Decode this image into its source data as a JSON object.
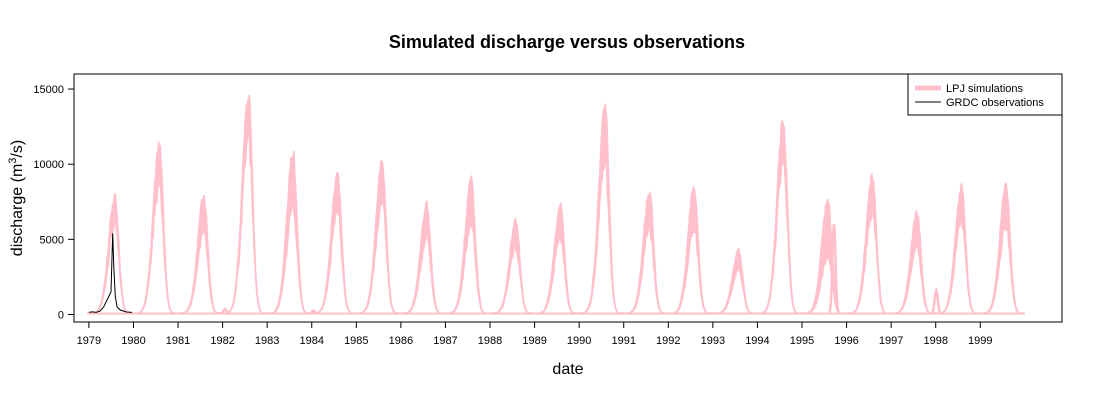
{
  "chart_data": {
    "type": "line",
    "title": "Simulated discharge versus observations",
    "xlabel": "date",
    "ylabel": "discharge (m3/s)",
    "ylabel_base": "discharge (m",
    "ylabel_sup": "3",
    "ylabel_tail": "/s)",
    "x_ticks": [
      "1979",
      "1980",
      "1981",
      "1982",
      "1983",
      "1984",
      "1985",
      "1986",
      "1987",
      "1988",
      "1989",
      "1990",
      "1991",
      "1992",
      "1993",
      "1994",
      "1995",
      "1996",
      "1997",
      "1998",
      "1999"
    ],
    "y_ticks": [
      0,
      5000,
      10000,
      15000
    ],
    "xlim": [
      "1978-09-01",
      "2000-11-01"
    ],
    "ylim": [
      -500,
      16000
    ],
    "grid": false,
    "legend_position": "top-right",
    "series": [
      {
        "name": "LPJ simulations",
        "color": "#ffc0cb",
        "style": "band",
        "annual_peaks": [
          {
            "year": 1979,
            "low": 6500,
            "peak": 8100
          },
          {
            "year": 1980,
            "low": 9500,
            "peak": 11600
          },
          {
            "year": 1981,
            "low": 5900,
            "peak": 8100
          },
          {
            "year": 1982,
            "low": 12800,
            "peak": 15200
          },
          {
            "year": 1983,
            "low": 7800,
            "peak": 11200
          },
          {
            "year": 1984,
            "low": 7500,
            "peak": 9800
          },
          {
            "year": 1985,
            "low": 8200,
            "peak": 10600
          },
          {
            "year": 1986,
            "low": 5500,
            "peak": 7600
          },
          {
            "year": 1987,
            "low": 6700,
            "peak": 9200
          },
          {
            "year": 1988,
            "low": 4800,
            "peak": 6400
          },
          {
            "year": 1989,
            "low": 5600,
            "peak": 7500
          },
          {
            "year": 1990,
            "low": 11000,
            "peak": 14500
          },
          {
            "year": 1991,
            "low": 6200,
            "peak": 8500
          },
          {
            "year": 1992,
            "low": 6300,
            "peak": 8800
          },
          {
            "year": 1993,
            "low": 3300,
            "peak": 4400
          },
          {
            "year": 1994,
            "low": 11000,
            "peak": 13400
          },
          {
            "year": 1995,
            "low": 4200,
            "peak": 7900
          },
          {
            "year": 1996,
            "low": 7500,
            "peak": 9600
          },
          {
            "year": 1997,
            "low": 5000,
            "peak": 7000
          },
          {
            "year": 1998,
            "low": 6800,
            "peak": 8800
          },
          {
            "year": 1999,
            "low": 6500,
            "peak": 9000
          }
        ],
        "secondary_bumps": [
          {
            "date": "1982-01-20",
            "value": 350
          },
          {
            "date": "1984-01-15",
            "value": 250
          },
          {
            "date": "1995-09-20",
            "value": 6000
          },
          {
            "date": "1998-01-05",
            "value": 1600
          }
        ]
      },
      {
        "name": "GRDC observations",
        "color": "#000000",
        "style": "line",
        "points": [
          [
            "1979-01-01",
            150
          ],
          [
            "1979-02-01",
            170
          ],
          [
            "1979-03-01",
            140
          ],
          [
            "1979-04-01",
            220
          ],
          [
            "1979-05-01",
            500
          ],
          [
            "1979-06-01",
            1000
          ],
          [
            "1979-07-01",
            1500
          ],
          [
            "1979-07-15",
            5400
          ],
          [
            "1979-07-25",
            3000
          ],
          [
            "1979-08-05",
            1200
          ],
          [
            "1979-08-20",
            500
          ],
          [
            "1979-09-15",
            300
          ],
          [
            "1979-11-01",
            170
          ],
          [
            "1979-12-20",
            140
          ]
        ]
      }
    ]
  }
}
